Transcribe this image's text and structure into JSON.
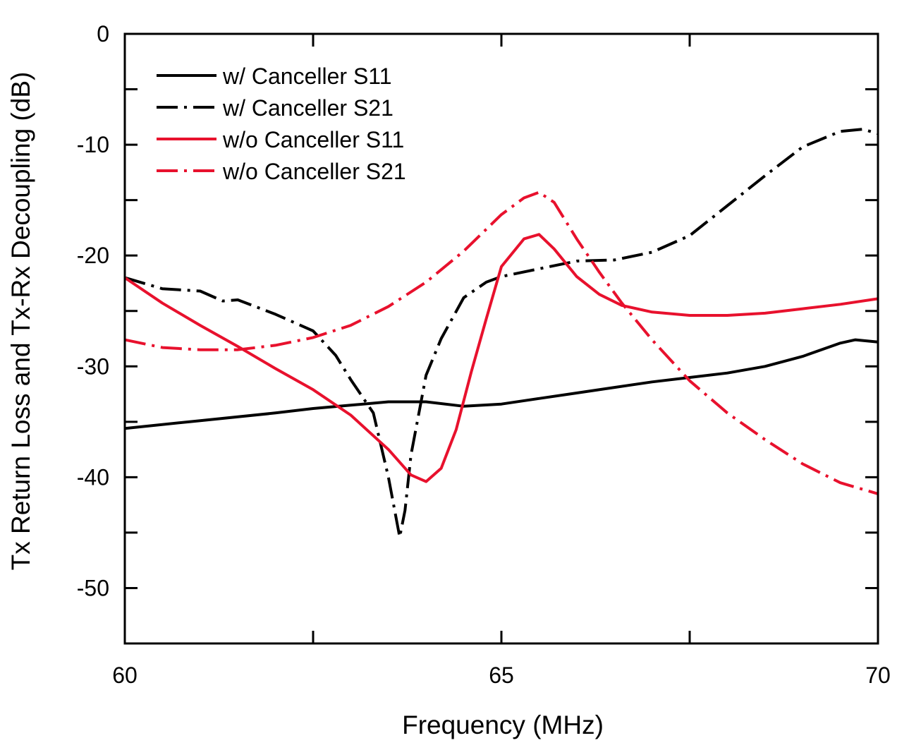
{
  "chart_data": {
    "type": "line",
    "title": "",
    "xlabel": "Frequency (MHz)",
    "ylabel": "Tx Return Loss and Tx-Rx Decoupling (dB)",
    "xlim": [
      60,
      70
    ],
    "ylim": [
      -55,
      0
    ],
    "x_ticks": [
      60,
      65,
      70
    ],
    "x_tick_labels": [
      "60",
      "65",
      "70"
    ],
    "x_minor_ticks": [
      62.5,
      67.5
    ],
    "y_ticks": [
      0,
      -10,
      -20,
      -30,
      -40,
      -50
    ],
    "y_tick_labels": [
      "0",
      "-10",
      "-20",
      "-30",
      "-40",
      "-50"
    ],
    "y_minor_ticks": [
      -5,
      -15,
      -25,
      -35,
      -45
    ],
    "grid": false,
    "legend_position": "top-left",
    "series": [
      {
        "name": "w/ Canceller S11",
        "color": "#000000",
        "dash": "solid",
        "x": [
          60,
          61,
          62,
          62.5,
          63,
          63.5,
          64,
          64.5,
          65,
          65.5,
          66,
          66.5,
          67,
          67.5,
          68,
          68.5,
          69,
          69.5,
          69.7,
          70
        ],
        "y": [
          -35.6,
          -34.9,
          -34.2,
          -33.8,
          -33.5,
          -33.2,
          -33.2,
          -33.6,
          -33.4,
          -32.9,
          -32.4,
          -31.9,
          -31.4,
          -31.0,
          -30.6,
          -30.0,
          -29.1,
          -27.9,
          -27.6,
          -27.8
        ]
      },
      {
        "name": "w/ Canceller S21",
        "color": "#000000",
        "dash": "dashdot",
        "x": [
          60,
          60.5,
          61,
          61.3,
          61.5,
          62,
          62.5,
          62.8,
          63,
          63.3,
          63.5,
          63.65,
          63.72,
          63.8,
          64,
          64.2,
          64.5,
          64.8,
          65,
          65.5,
          66,
          66.5,
          67,
          67.5,
          68,
          68.5,
          69,
          69.5,
          69.8,
          70
        ],
        "y": [
          -22,
          -23,
          -23.2,
          -24.1,
          -24.0,
          -25.3,
          -26.8,
          -29,
          -31.2,
          -34.2,
          -40,
          -45.4,
          -43,
          -38,
          -30.8,
          -27.5,
          -23.8,
          -22.4,
          -21.9,
          -21.2,
          -20.5,
          -20.4,
          -19.7,
          -18.2,
          -15.5,
          -12.8,
          -10.2,
          -8.8,
          -8.6,
          -9
        ]
      },
      {
        "name": "w/o Canceller S11",
        "color": "#e8112d",
        "dash": "solid",
        "x": [
          60,
          60.5,
          61,
          61.5,
          62,
          62.5,
          63,
          63.5,
          63.8,
          64,
          64.2,
          64.4,
          64.6,
          64.8,
          65,
          65.3,
          65.5,
          65.7,
          66,
          66.3,
          66.6,
          67,
          67.5,
          68,
          68.5,
          69,
          69.5,
          70
        ],
        "y": [
          -22,
          -24.3,
          -26.3,
          -28.2,
          -30.2,
          -32.1,
          -34.4,
          -37.5,
          -39.8,
          -40.4,
          -39.2,
          -35.7,
          -30.5,
          -25.7,
          -21.0,
          -18.5,
          -18.1,
          -19.4,
          -21.9,
          -23.5,
          -24.5,
          -25.1,
          -25.4,
          -25.4,
          -25.2,
          -24.8,
          -24.4,
          -23.9
        ]
      },
      {
        "name": "w/o Canceller S21",
        "color": "#e8112d",
        "dash": "dashdot",
        "x": [
          60,
          60.5,
          61,
          61.5,
          62,
          62.5,
          63,
          63.5,
          64,
          64.5,
          65,
          65.3,
          65.5,
          65.7,
          66,
          66.3,
          66.6,
          67,
          67.5,
          68,
          68.5,
          69,
          69.5,
          70
        ],
        "y": [
          -27.6,
          -28.3,
          -28.5,
          -28.5,
          -28.1,
          -27.4,
          -26.3,
          -24.6,
          -22.4,
          -19.6,
          -16.3,
          -14.8,
          -14.3,
          -15.2,
          -18.5,
          -21.5,
          -24.3,
          -27.6,
          -31.3,
          -34.2,
          -36.6,
          -38.8,
          -40.5,
          -41.5
        ]
      }
    ]
  }
}
